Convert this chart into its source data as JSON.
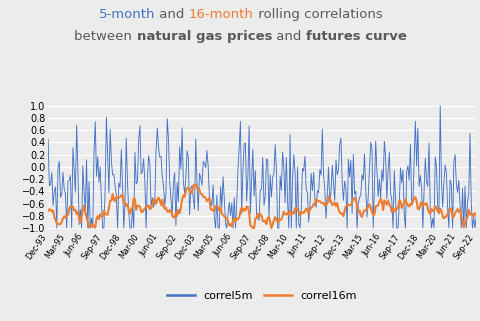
{
  "color_5m": "#4472C4",
  "color_16m": "#ED7D31",
  "ylim": [
    -1.05,
    1.05
  ],
  "yticks": [
    -1,
    -0.8,
    -0.6,
    -0.4,
    -0.2,
    0,
    0.2,
    0.4,
    0.6,
    0.8,
    1
  ],
  "background_color": "#ECECEC",
  "legend_label_5m": "correl5m",
  "legend_label_16m": "correl16m",
  "xtick_labels": [
    "Dec-93",
    "Mar-95",
    "Jun-96",
    "Sep-97",
    "Dec-98",
    "Mar-00",
    "Jun-01",
    "Sep-02",
    "Dec-03",
    "Mar-05",
    "Jun-06",
    "Sep-07",
    "Dec-08",
    "Mar-10",
    "Jun-11",
    "Sep-12",
    "Dec-13",
    "Mar-15",
    "Jun-16",
    "Sep-17",
    "Dec-18",
    "Mar-20",
    "Jun-21",
    "Sep-22"
  ],
  "title_line1": [
    {
      "text": "5-month",
      "color": "#4472C4",
      "bold": false
    },
    {
      "text": " and ",
      "color": "#595959",
      "bold": false
    },
    {
      "text": "16-month",
      "color": "#ED7D31",
      "bold": false
    },
    {
      "text": " rolling correlations",
      "color": "#595959",
      "bold": false
    }
  ],
  "title_line2": [
    {
      "text": "between ",
      "color": "#595959",
      "bold": false
    },
    {
      "text": "natural gas prices",
      "color": "#595959",
      "bold": true
    },
    {
      "text": " and ",
      "color": "#595959",
      "bold": false
    },
    {
      "text": "futures curve",
      "color": "#595959",
      "bold": true
    }
  ],
  "title_fontsize": 9.5,
  "n_points": 346
}
